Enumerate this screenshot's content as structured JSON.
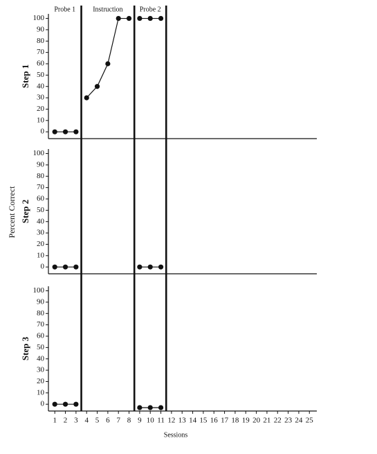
{
  "ylabel": "Percent Correct",
  "phase_labels": [
    "Probe 1",
    "Instruction",
    "Probe 2"
  ],
  "phase_changes": [
    3.5,
    8.5,
    11.5
  ],
  "chart_data": [
    {
      "type": "line",
      "title": "Step 1",
      "x": [
        1,
        2,
        3,
        4,
        5,
        6,
        7,
        8,
        9,
        10,
        11
      ],
      "series": [
        {
          "values": [
            0,
            0,
            0,
            null,
            null,
            null,
            null,
            null,
            null,
            null,
            null
          ]
        },
        {
          "values": [
            null,
            null,
            null,
            30,
            40,
            60,
            100,
            100,
            null,
            null,
            null
          ]
        },
        {
          "values": [
            null,
            null,
            null,
            null,
            null,
            null,
            null,
            null,
            100,
            100,
            100
          ]
        }
      ],
      "xlim": [
        0.4,
        25.7
      ],
      "ylim": [
        -6,
        104
      ],
      "yticks": [
        0,
        10,
        20,
        30,
        40,
        50,
        60,
        70,
        80,
        90,
        100
      ]
    },
    {
      "type": "line",
      "title": "Step 2",
      "x": [
        1,
        2,
        3,
        4,
        5,
        6,
        7,
        8,
        9,
        10,
        11
      ],
      "series": [
        {
          "values": [
            0,
            0,
            0,
            null,
            null,
            null,
            null,
            null,
            null,
            null,
            null
          ]
        },
        {
          "values": [
            null,
            null,
            null,
            null,
            null,
            null,
            null,
            null,
            0,
            0,
            0
          ]
        }
      ],
      "xlim": [
        0.4,
        25.7
      ],
      "ylim": [
        -6,
        104
      ],
      "yticks": [
        0,
        10,
        20,
        30,
        40,
        50,
        60,
        70,
        80,
        90,
        100
      ]
    },
    {
      "type": "line",
      "title": "Step 3",
      "x": [
        1,
        2,
        3,
        4,
        5,
        6,
        7,
        8,
        9,
        10,
        11
      ],
      "series": [
        {
          "values": [
            0,
            0,
            0,
            null,
            null,
            null,
            null,
            null,
            null,
            null,
            null
          ]
        },
        {
          "values": [
            null,
            null,
            null,
            null,
            null,
            null,
            null,
            null,
            -3,
            -3,
            -3
          ]
        }
      ],
      "xlim": [
        0.4,
        25.7
      ],
      "ylim": [
        -6,
        104
      ],
      "yticks": [
        0,
        10,
        20,
        30,
        40,
        50,
        60,
        70,
        80,
        90,
        100
      ],
      "xticks": [
        1,
        2,
        3,
        4,
        5,
        6,
        7,
        8,
        9,
        10,
        11,
        12,
        13,
        14,
        15,
        16,
        17,
        18,
        19,
        20,
        21,
        22,
        23,
        24,
        25
      ],
      "xlabel": "Sessions"
    }
  ]
}
